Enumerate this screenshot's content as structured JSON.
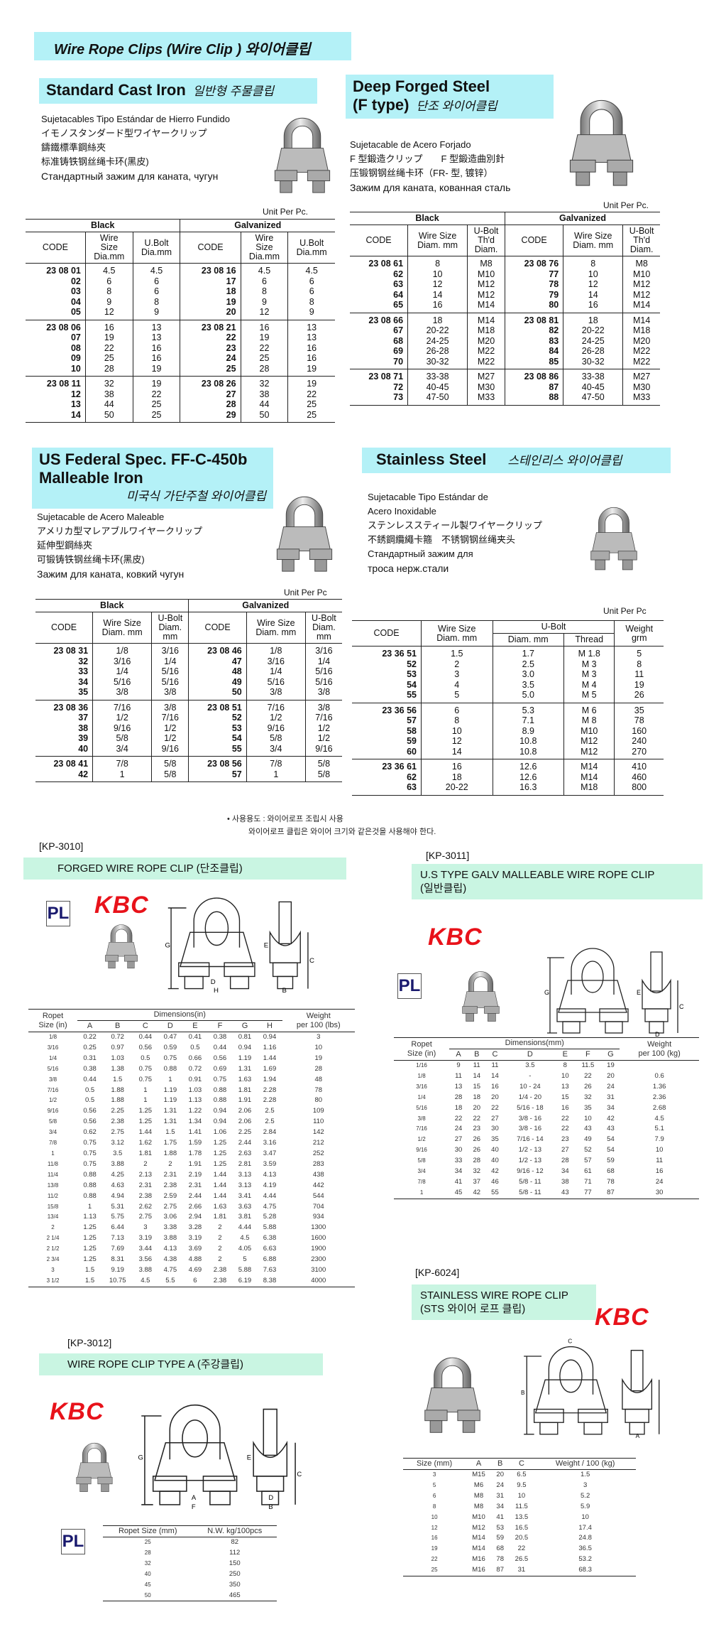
{
  "main_title": "Wire Rope Clips  (Wire Clip ) 와이어클립",
  "colors": {
    "banner": "#b4f1f7",
    "kp_banner": "#c9f5e2",
    "kbc_logo": "#e8121a",
    "pl_logo": "#1a1a6e"
  },
  "standard_cast_iron": {
    "title": "Standard Cast Iron",
    "title_ko": "일반형 주물클립",
    "desc": [
      "Sujetacables Tipo Estándar de Hierro Fundido",
      "イモノスタンダード型ワイヤークリップ",
      "鑄鐵標準鋼絲夾",
      "标准铸铁钢丝绳卡环(黑皮)",
      "Стандартный зажим для каната, чугун"
    ],
    "unit": "Unit Per Pc.",
    "groups": [
      "Black",
      "Galvanized"
    ],
    "columns": [
      "CODE",
      "Wire\nSize\nDia.mm",
      "U.Bolt\nDia.mm",
      "CODE",
      "Wire\nSize\nDia.mm",
      "U.Bolt\nDia.mm"
    ],
    "row_groups": [
      [
        [
          "23 08 01",
          "4.5",
          "4.5",
          "23 08 16",
          "4.5",
          "4.5"
        ],
        [
          "02",
          "6",
          "6",
          "17",
          "6",
          "6"
        ],
        [
          "03",
          "8",
          "6",
          "18",
          "8",
          "6"
        ],
        [
          "04",
          "9",
          "8",
          "19",
          "9",
          "8"
        ],
        [
          "05",
          "12",
          "9",
          "20",
          "12",
          "9"
        ]
      ],
      [
        [
          "23 08 06",
          "16",
          "13",
          "23 08 21",
          "16",
          "13"
        ],
        [
          "07",
          "19",
          "13",
          "22",
          "19",
          "13"
        ],
        [
          "08",
          "22",
          "16",
          "23",
          "22",
          "16"
        ],
        [
          "09",
          "25",
          "16",
          "24",
          "25",
          "16"
        ],
        [
          "10",
          "28",
          "19",
          "25",
          "28",
          "19"
        ]
      ],
      [
        [
          "23 08 11",
          "32",
          "19",
          "23 08 26",
          "32",
          "19"
        ],
        [
          "12",
          "38",
          "22",
          "27",
          "38",
          "22"
        ],
        [
          "13",
          "44",
          "25",
          "28",
          "44",
          "25"
        ],
        [
          "14",
          "50",
          "25",
          "29",
          "50",
          "25"
        ]
      ]
    ]
  },
  "deep_forged": {
    "title": "Deep Forged Steel",
    "title2": "(F type)",
    "title_ko": "단조 와이어클립",
    "desc": [
      "Sujetacable de Acero Forjado",
      "F 型鍛造クリップ　　F 型鍛造曲別針",
      "压锻钢钢丝绳卡环（FR- 型, 镀锌）",
      "Зажим для каната, кованная сталь"
    ],
    "unit": "Unit Per Pc.",
    "groups": [
      "Black",
      "Galvanized"
    ],
    "columns": [
      "CODE",
      "Wire Size\nDiam. mm",
      "U-Bolt\nTh'd\nDiam.",
      "CODE",
      "Wire Size\nDiam. mm",
      "U-Bolt\nTh'd\nDiam."
    ],
    "row_groups": [
      [
        [
          "23 08 61",
          "8",
          "M8",
          "23 08 76",
          "8",
          "M8"
        ],
        [
          "62",
          "10",
          "M10",
          "77",
          "10",
          "M10"
        ],
        [
          "63",
          "12",
          "M12",
          "78",
          "12",
          "M12"
        ],
        [
          "64",
          "14",
          "M12",
          "79",
          "14",
          "M12"
        ],
        [
          "65",
          "16",
          "M14",
          "80",
          "16",
          "M14"
        ]
      ],
      [
        [
          "23 08 66",
          "18",
          "M14",
          "23 08 81",
          "18",
          "M14"
        ],
        [
          "67",
          "20-22",
          "M18",
          "82",
          "20-22",
          "M18"
        ],
        [
          "68",
          "24-25",
          "M20",
          "83",
          "24-25",
          "M20"
        ],
        [
          "69",
          "26-28",
          "M22",
          "84",
          "26-28",
          "M22"
        ],
        [
          "70",
          "30-32",
          "M22",
          "85",
          "30-32",
          "M22"
        ]
      ],
      [
        [
          "23 08 71",
          "33-38",
          "M27",
          "23 08 86",
          "33-38",
          "M27"
        ],
        [
          "72",
          "40-45",
          "M30",
          "87",
          "40-45",
          "M30"
        ],
        [
          "73",
          "47-50",
          "M33",
          "88",
          "47-50",
          "M33"
        ]
      ]
    ]
  },
  "us_federal": {
    "title": "US Federal Spec. FF-C-450b",
    "title2": "Malleable Iron",
    "title_ko": "미국식 가단주철 와이어클립",
    "desc": [
      "Sujetacable de Acero Maleable",
      "アメリカ型マレアブルワイヤークリップ",
      "延伸型鋼絲夾",
      "可锻铸铁钢丝绳卡环(黑皮)",
      "Зажим для каната, ковкий чугун"
    ],
    "unit": "Unit Per Pc",
    "groups": [
      "Black",
      "Galvanized"
    ],
    "columns": [
      "CODE",
      "Wire Size\nDiam. mm",
      "U-Bolt\nDiam.\nmm",
      "CODE",
      "Wire Size\nDiam. mm",
      "U-Bolt\nDiam.\nmm"
    ],
    "row_groups": [
      [
        [
          "23 08 31",
          "1/8",
          "3/16",
          "23 08 46",
          "1/8",
          "3/16"
        ],
        [
          "32",
          "3/16",
          "1/4",
          "47",
          "3/16",
          "1/4"
        ],
        [
          "33",
          "1/4",
          "5/16",
          "48",
          "1/4",
          "5/16"
        ],
        [
          "34",
          "5/16",
          "5/16",
          "49",
          "5/16",
          "5/16"
        ],
        [
          "35",
          "3/8",
          "3/8",
          "50",
          "3/8",
          "3/8"
        ]
      ],
      [
        [
          "23 08 36",
          "7/16",
          "3/8",
          "23 08 51",
          "7/16",
          "3/8"
        ],
        [
          "37",
          "1/2",
          "7/16",
          "52",
          "1/2",
          "7/16"
        ],
        [
          "38",
          "9/16",
          "1/2",
          "53",
          "9/16",
          "1/2"
        ],
        [
          "39",
          "5/8",
          "1/2",
          "54",
          "5/8",
          "1/2"
        ],
        [
          "40",
          "3/4",
          "9/16",
          "55",
          "3/4",
          "9/16"
        ]
      ],
      [
        [
          "23 08 41",
          "7/8",
          "5/8",
          "23 08 56",
          "7/8",
          "5/8"
        ],
        [
          "42",
          "1",
          "5/8",
          "57",
          "1",
          "5/8"
        ]
      ]
    ]
  },
  "stainless": {
    "title": "Stainless Steel",
    "title_ko": "스테인리스 와이어클립",
    "desc": [
      "Sujetacable Tipo Estándar de",
      "Acero Inoxidable",
      "ステンレススティール製ワイヤークリップ",
      "不銹鋼纜繩卡箍　不锈钢钢丝绳夹头",
      "Стандартный зажим для",
      "троса нерж.стали"
    ],
    "unit": "Unit Per Pc",
    "columns": {
      "code": "CODE",
      "wire": "Wire Size\nDiam. mm",
      "ubolt": "U-Bolt",
      "diam": "Diam. mm",
      "thread": "Thread",
      "weight": "Weight\ngrm"
    },
    "row_groups": [
      [
        [
          "23 36 51",
          "1.5",
          "1.7",
          "M  1.8",
          "5"
        ],
        [
          "52",
          "2",
          "2.5",
          "M  3",
          "8"
        ],
        [
          "53",
          "3",
          "3.0",
          "M  3",
          "11"
        ],
        [
          "54",
          "4",
          "3.5",
          "M  4",
          "19"
        ],
        [
          "55",
          "5",
          "5.0",
          "M  5",
          "26"
        ]
      ],
      [
        [
          "23 36 56",
          "6",
          "5.3",
          "M  6",
          "35"
        ],
        [
          "57",
          "8",
          "7.1",
          "M  8",
          "78"
        ],
        [
          "58",
          "10",
          "8.9",
          "M10",
          "160"
        ],
        [
          "59",
          "12",
          "10.8",
          "M12",
          "240"
        ],
        [
          "60",
          "14",
          "10.8",
          "M12",
          "270"
        ]
      ],
      [
        [
          "23 36 61",
          "16",
          "12.6",
          "M14",
          "410"
        ],
        [
          "62",
          "18",
          "12.6",
          "M14",
          "460"
        ],
        [
          "63",
          "20-22",
          "16.3",
          "M18",
          "800"
        ]
      ]
    ]
  },
  "usage_note": [
    "• 사용용도 : 와이어로프 조립시 사용",
    "와이어로프 클립은 와이어 크기와 같은것을 사용해야 한다."
  ],
  "logos": {
    "kbc": "KBC",
    "pl": "PL"
  },
  "kp3010": {
    "label": "[KP-3010]",
    "title": "FORGED WIRE ROPE CLIP (단조클립)",
    "diagram_labels": [
      "G",
      "C",
      "E",
      "D",
      "H",
      "B"
    ],
    "columns": {
      "size": "Ropet\nSize (in)",
      "dims": "Dimensions(in)",
      "letters": [
        "A",
        "B",
        "C",
        "D",
        "E",
        "F",
        "G",
        "H"
      ],
      "weight": "Weight\nper 100 (lbs)"
    },
    "rows": [
      [
        "1/8",
        "0.22",
        "0.72",
        "0.44",
        "0.47",
        "0.41",
        "0.38",
        "0.81",
        "0.94",
        "3"
      ],
      [
        "3/16",
        "0.25",
        "0.97",
        "0.56",
        "0.59",
        "0.5",
        "0.44",
        "0.94",
        "1.16",
        "10"
      ],
      [
        "1/4",
        "0.31",
        "1.03",
        "0.5",
        "0.75",
        "0.66",
        "0.56",
        "1.19",
        "1.44",
        "19"
      ],
      [
        "5/16",
        "0.38",
        "1.38",
        "0.75",
        "0.88",
        "0.72",
        "0.69",
        "1.31",
        "1.69",
        "28"
      ],
      [
        "3/8",
        "0.44",
        "1.5",
        "0.75",
        "1",
        "0.91",
        "0.75",
        "1.63",
        "1.94",
        "48"
      ],
      [
        "7/16",
        "0.5",
        "1.88",
        "1",
        "1.19",
        "1.03",
        "0.88",
        "1.81",
        "2.28",
        "78"
      ],
      [
        "1/2",
        "0.5",
        "1.88",
        "1",
        "1.19",
        "1.13",
        "0.88",
        "1.91",
        "2.28",
        "80"
      ],
      [
        "9/16",
        "0.56",
        "2.25",
        "1.25",
        "1.31",
        "1.22",
        "0.94",
        "2.06",
        "2.5",
        "109"
      ],
      [
        "5/8",
        "0.56",
        "2.38",
        "1.25",
        "1.31",
        "1.34",
        "0.94",
        "2.06",
        "2.5",
        "110"
      ],
      [
        "3/4",
        "0.62",
        "2.75",
        "1.44",
        "1.5",
        "1.41",
        "1.06",
        "2.25",
        "2.84",
        "142"
      ],
      [
        "7/8",
        "0.75",
        "3.12",
        "1.62",
        "1.75",
        "1.59",
        "1.25",
        "2.44",
        "3.16",
        "212"
      ],
      [
        "1",
        "0.75",
        "3.5",
        "1.81",
        "1.88",
        "1.78",
        "1.25",
        "2.63",
        "3.47",
        "252"
      ],
      [
        "11/8",
        "0.75",
        "3.88",
        "2",
        "2",
        "1.91",
        "1.25",
        "2.81",
        "3.59",
        "283"
      ],
      [
        "11/4",
        "0.88",
        "4.25",
        "2.13",
        "2.31",
        "2.19",
        "1.44",
        "3.13",
        "4.13",
        "438"
      ],
      [
        "13/8",
        "0.88",
        "4.63",
        "2.31",
        "2.38",
        "2.31",
        "1.44",
        "3.13",
        "4.19",
        "442"
      ],
      [
        "11/2",
        "0.88",
        "4.94",
        "2.38",
        "2.59",
        "2.44",
        "1.44",
        "3.41",
        "4.44",
        "544"
      ],
      [
        "15/8",
        "1",
        "5.31",
        "2.62",
        "2.75",
        "2.66",
        "1.63",
        "3.63",
        "4.75",
        "704"
      ],
      [
        "13/4",
        "1.13",
        "5.75",
        "2.75",
        "3.06",
        "2.94",
        "1.81",
        "3.81",
        "5.28",
        "934"
      ],
      [
        "2",
        "1.25",
        "6.44",
        "3",
        "3.38",
        "3.28",
        "2",
        "4.44",
        "5.88",
        "1300"
      ],
      [
        "2 1/4",
        "1.25",
        "7.13",
        "3.19",
        "3.88",
        "3.19",
        "2",
        "4.5",
        "6.38",
        "1600"
      ],
      [
        "2 1/2",
        "1.25",
        "7.69",
        "3.44",
        "4.13",
        "3.69",
        "2",
        "4.05",
        "6.63",
        "1900"
      ],
      [
        "2 3/4",
        "1.25",
        "8.31",
        "3.56",
        "4.38",
        "4.88",
        "2",
        "5",
        "6.88",
        "2300"
      ],
      [
        "3",
        "1.5",
        "9.19",
        "3.88",
        "4.75",
        "4.69",
        "2.38",
        "5.88",
        "7.63",
        "3100"
      ],
      [
        "3 1/2",
        "1.5",
        "10.75",
        "4.5",
        "5.5",
        "6",
        "2.38",
        "6.19",
        "8.38",
        "4000"
      ]
    ]
  },
  "kp3011": {
    "label": "[KP-3011]",
    "title": "U.S TYPE GALV MALLEABLE WIRE ROPE CLIP",
    "title_ko": "(일반클립)",
    "diagram_labels": [
      "G",
      "E",
      "C",
      "D",
      "A",
      "F",
      "B"
    ],
    "columns": {
      "size": "Ropet\nSize (in)",
      "dims": "Dimensions(mm)",
      "letters": [
        "A",
        "B",
        "C",
        "D",
        "E",
        "F",
        "G"
      ],
      "weight": "Weight\nper 100 (kg)"
    },
    "rows": [
      [
        "1/16",
        "9",
        "11",
        "11",
        "3.5",
        "8",
        "11.5",
        "19",
        ""
      ],
      [
        "1/8",
        "11",
        "14",
        "14",
        "-",
        "10",
        "22",
        "20",
        "0.6"
      ],
      [
        "3/16",
        "13",
        "15",
        "16",
        "10 - 24",
        "13",
        "26",
        "24",
        "1.36"
      ],
      [
        "1/4",
        "28",
        "18",
        "20",
        "1/4 - 20",
        "15",
        "32",
        "31",
        "2.36"
      ],
      [
        "5/16",
        "18",
        "20",
        "22",
        "5/16 - 18",
        "16",
        "35",
        "34",
        "2.68"
      ],
      [
        "3/8",
        "22",
        "22",
        "27",
        "3/8 - 16",
        "22",
        "10",
        "42",
        "4.5"
      ],
      [
        "7/16",
        "24",
        "23",
        "30",
        "3/8 - 16",
        "22",
        "43",
        "43",
        "5.1"
      ],
      [
        "1/2",
        "27",
        "26",
        "35",
        "7/16 - 14",
        "23",
        "49",
        "54",
        "7.9"
      ],
      [
        "9/16",
        "30",
        "26",
        "40",
        "1/2 - 13",
        "27",
        "52",
        "54",
        "10"
      ],
      [
        "5/8",
        "33",
        "28",
        "40",
        "1/2 - 13",
        "28",
        "57",
        "59",
        "11"
      ],
      [
        "3/4",
        "34",
        "32",
        "42",
        "9/16 - 12",
        "34",
        "61",
        "68",
        "16"
      ],
      [
        "7/8",
        "41",
        "37",
        "46",
        "5/8 - 11",
        "38",
        "71",
        "78",
        "24"
      ],
      [
        "1",
        "45",
        "42",
        "55",
        "5/8 - 11",
        "43",
        "77",
        "87",
        "30"
      ]
    ]
  },
  "kp3012": {
    "label": "[KP-3012]",
    "title": "WIRE ROPE CLIP TYPE A (주강클립)",
    "diagram_labels": [
      "G",
      "E",
      "C",
      "A",
      "F",
      "D",
      "B"
    ],
    "columns": [
      "Ropet Size (mm)",
      "N.W. kg/100pcs"
    ],
    "rows": [
      [
        "25",
        "82"
      ],
      [
        "28",
        "112"
      ],
      [
        "32",
        "150"
      ],
      [
        "40",
        "250"
      ],
      [
        "45",
        "350"
      ],
      [
        "50",
        "465"
      ]
    ]
  },
  "kp6024": {
    "label": "[KP-6024]",
    "title": "STAINLESS WIRE ROPE CLIP",
    "title_ko": "(STS 와이어 로프 클립)",
    "diagram_labels": [
      "C",
      "B",
      "A"
    ],
    "columns": [
      "Size (mm)",
      "A",
      "B",
      "C",
      "Weight / 100 (kg)"
    ],
    "rows": [
      [
        "3",
        "M15",
        "20",
        "6.5",
        "1.5"
      ],
      [
        "5",
        "M6",
        "24",
        "9.5",
        "3"
      ],
      [
        "6",
        "M8",
        "31",
        "10",
        "5.2"
      ],
      [
        "8",
        "M8",
        "34",
        "11.5",
        "5.9"
      ],
      [
        "10",
        "M10",
        "41",
        "13.5",
        "10"
      ],
      [
        "12",
        "M12",
        "53",
        "16.5",
        "17.4"
      ],
      [
        "16",
        "M14",
        "59",
        "20.5",
        "24.8"
      ],
      [
        "19",
        "M14",
        "68",
        "22",
        "36.5"
      ],
      [
        "22",
        "M16",
        "78",
        "26.5",
        "53.2"
      ],
      [
        "25",
        "M16",
        "87",
        "31",
        "68.3"
      ]
    ]
  }
}
